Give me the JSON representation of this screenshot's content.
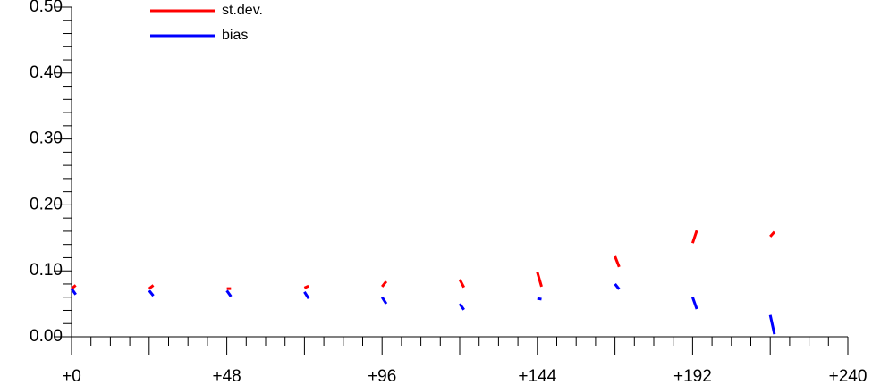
{
  "chart_data": {
    "type": "line",
    "x": [
      0,
      1.3,
      12,
      24,
      25.3,
      36,
      48,
      49.3,
      60,
      72,
      73.3,
      84,
      96,
      97.3,
      108,
      120,
      121.3,
      132,
      144,
      145.3,
      156,
      168,
      169.3,
      180,
      192,
      193.3,
      204,
      216,
      217.3
    ],
    "series": [
      {
        "name": "st.dev.",
        "color": "#ff0000",
        "values": [
          0.073,
          0.078,
          null,
          0.073,
          0.078,
          null,
          0.073,
          0.073,
          null,
          0.074,
          0.077,
          null,
          0.076,
          0.084,
          null,
          0.087,
          0.075,
          null,
          0.098,
          0.076,
          null,
          0.122,
          0.106,
          null,
          0.142,
          0.161,
          null,
          0.152,
          0.159
        ]
      },
      {
        "name": "bias",
        "color": "#0000ff",
        "values": [
          0.073,
          0.064,
          null,
          0.07,
          0.062,
          null,
          0.07,
          0.061,
          null,
          0.068,
          0.058,
          null,
          0.06,
          0.05,
          null,
          0.05,
          0.041,
          null,
          0.058,
          0.057,
          null,
          0.08,
          0.072,
          null,
          0.06,
          0.042,
          null,
          0.033,
          0.004
        ]
      }
    ],
    "xlim": [
      0,
      240
    ],
    "xticks": [
      {
        "value": 0,
        "label": "+0"
      },
      {
        "value": 48,
        "label": "+48"
      },
      {
        "value": 96,
        "label": "+96"
      },
      {
        "value": 144,
        "label": "+144"
      },
      {
        "value": 192,
        "label": "+192"
      },
      {
        "value": 240,
        "label": "+240"
      }
    ],
    "ylim": [
      0,
      0.5
    ],
    "yticks": [
      {
        "value": 0,
        "label": "0.00"
      },
      {
        "value": 0.1,
        "label": "0.10"
      },
      {
        "value": 0.2,
        "label": "0.20"
      },
      {
        "value": 0.3,
        "label": "0.30"
      },
      {
        "value": 0.4,
        "label": "0.40"
      },
      {
        "value": 0.5,
        "label": "0.50"
      }
    ],
    "legend": "top-left"
  }
}
